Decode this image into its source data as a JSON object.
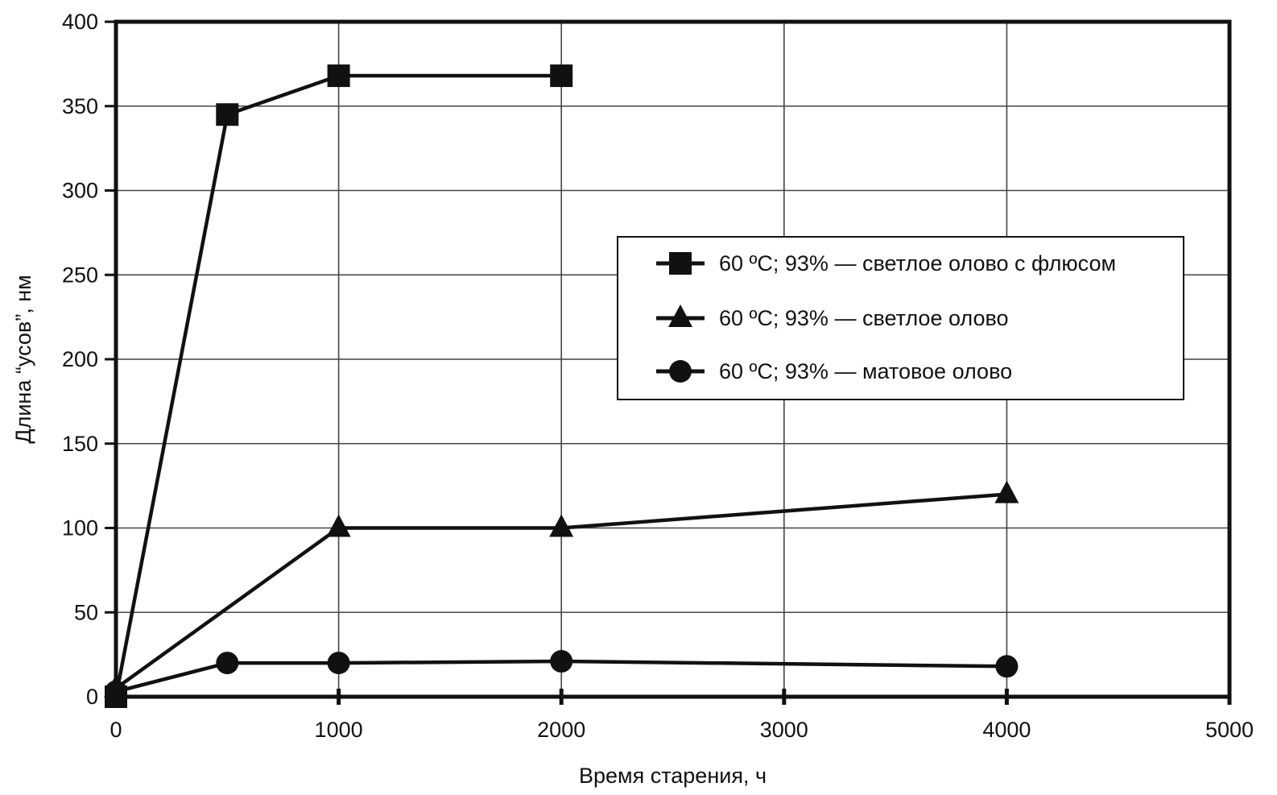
{
  "chart_data": {
    "type": "line",
    "xlabel": "Время старения, ч",
    "ylabel": "Длина “усов”, нм",
    "xlim": [
      0,
      5000
    ],
    "ylim": [
      0,
      400
    ],
    "xticks": [
      0,
      1000,
      2000,
      3000,
      4000,
      5000
    ],
    "yticks": [
      0,
      50,
      100,
      150,
      200,
      250,
      300,
      350,
      400
    ],
    "grid": true,
    "legend_position": "right",
    "series": [
      {
        "name": "60 ºC; 93% — светлое олово с флюсом",
        "marker": "square",
        "x": [
          0,
          500,
          1000,
          2000
        ],
        "y": [
          0,
          345,
          368,
          368
        ]
      },
      {
        "name": "60 ºC; 93% — светлое олово",
        "marker": "triangle",
        "x": [
          0,
          1000,
          2000,
          4000
        ],
        "y": [
          5,
          100,
          100,
          120
        ]
      },
      {
        "name": "60 ºC; 93% — матовое олово",
        "marker": "circle",
        "x": [
          0,
          500,
          1000,
          2000,
          4000
        ],
        "y": [
          3,
          20,
          20,
          21,
          18
        ]
      }
    ]
  }
}
